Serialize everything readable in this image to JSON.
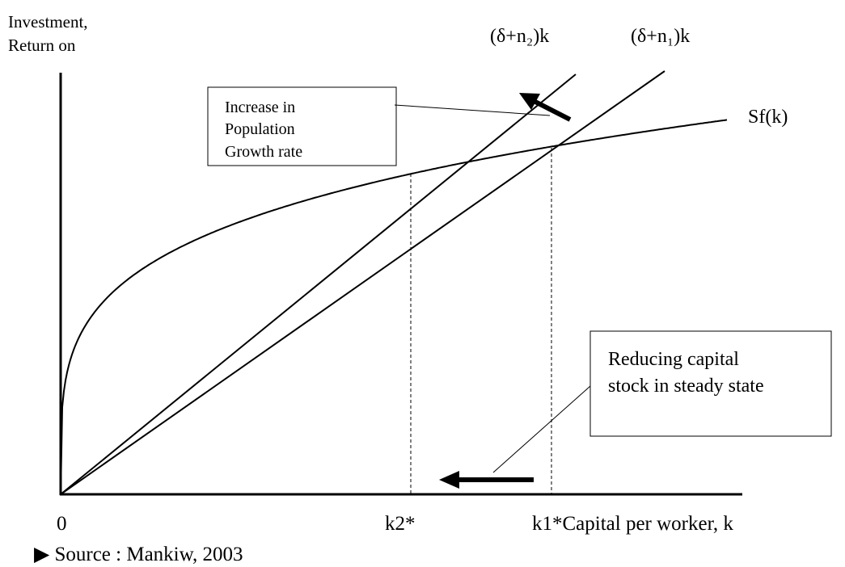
{
  "axes": {
    "y_label": [
      "Investment,",
      "Return on"
    ],
    "origin": "0",
    "x_label": "k1*Capital per worker, k",
    "k2": "k2*"
  },
  "curves": {
    "n2": "(δ+n₂)k",
    "n1": "(δ+n₁)k",
    "savings": "Sf(k)"
  },
  "boxes": [
    {
      "lines": [
        "Increase in",
        "Population",
        "Growth rate"
      ]
    },
    {
      "lines": [
        "Reducing capital",
        "stock in steady state"
      ]
    }
  ],
  "source": "▶ Source : Mankiw, 2003"
}
